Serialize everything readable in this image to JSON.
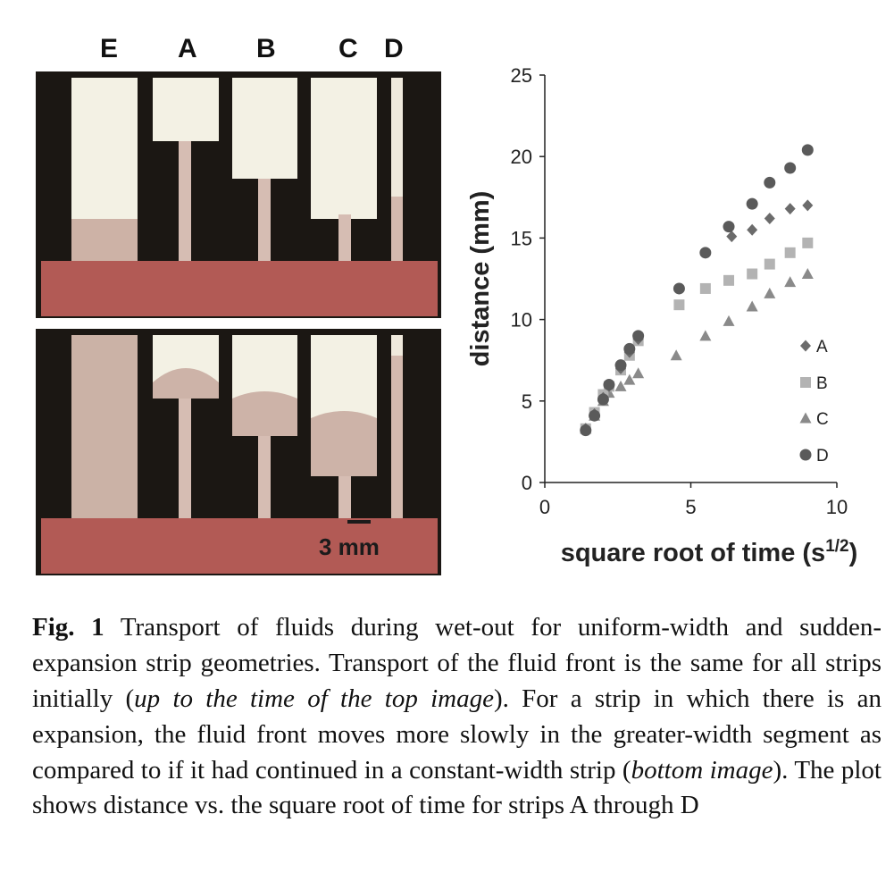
{
  "figure": {
    "strip_labels": [
      "E",
      "A",
      "B",
      "C",
      "D"
    ],
    "scale_bar_label": "3 mm",
    "colors": {
      "background_dark": "#1a1612",
      "strip_white": "#f3f0e4",
      "fluid_pink": "#cdb4aa",
      "reservoir_red": "#b25a55"
    }
  },
  "chart_data": {
    "type": "scatter",
    "xlabel_main": "square root of time (s",
    "xlabel_sup": "1/2",
    "xlabel_end": ")",
    "ylabel": "distance (mm)",
    "xlim": [
      0,
      10
    ],
    "ylim": [
      0,
      25
    ],
    "xticks": [
      0,
      5,
      10
    ],
    "yticks": [
      0,
      5,
      10,
      15,
      20,
      25
    ],
    "legend_position": "right",
    "series": [
      {
        "name": "A",
        "marker": "diamond",
        "color": "#6b6b6b",
        "x": [
          1.4,
          1.7,
          2.0,
          2.2,
          2.6,
          2.9,
          3.2,
          6.4,
          7.1,
          7.7,
          8.4,
          9.0
        ],
        "y": [
          3.3,
          4.2,
          5.2,
          5.9,
          7.0,
          8.0,
          8.8,
          15.1,
          15.5,
          16.2,
          16.8,
          17.0
        ]
      },
      {
        "name": "B",
        "marker": "square",
        "color": "#b3b3b3",
        "x": [
          1.4,
          1.7,
          2.0,
          2.2,
          2.6,
          2.9,
          3.2,
          4.6,
          5.5,
          6.3,
          7.1,
          7.7,
          8.4,
          9.0
        ],
        "y": [
          3.3,
          4.3,
          5.4,
          5.9,
          6.9,
          7.8,
          8.7,
          10.9,
          11.9,
          12.4,
          12.8,
          13.4,
          14.1,
          14.7
        ]
      },
      {
        "name": "C",
        "marker": "triangle",
        "color": "#8a8a8a",
        "x": [
          1.4,
          1.7,
          2.0,
          2.2,
          2.6,
          2.9,
          3.2,
          4.5,
          5.5,
          6.3,
          7.1,
          7.7,
          8.4,
          9.0
        ],
        "y": [
          3.3,
          4.1,
          5.0,
          5.5,
          5.9,
          6.3,
          6.7,
          7.8,
          9.0,
          9.9,
          10.8,
          11.6,
          12.3,
          12.8
        ]
      },
      {
        "name": "D",
        "marker": "circle",
        "color": "#5a5a5a",
        "x": [
          1.4,
          1.7,
          2.0,
          2.2,
          2.6,
          2.9,
          3.2,
          4.6,
          5.5,
          6.3,
          7.1,
          7.7,
          8.4,
          9.0
        ],
        "y": [
          3.2,
          4.1,
          5.1,
          6.0,
          7.2,
          8.2,
          9.0,
          11.9,
          14.1,
          15.7,
          17.1,
          18.4,
          19.3,
          20.4
        ]
      }
    ]
  },
  "caption": {
    "label": "Fig. 1",
    "text_1": " Transport of fluids during wet-out for uniform-width and sudden-expansion strip geometries. Transport of the fluid front is the same for all strips initially (",
    "italic_1": "up to the time of the top image",
    "text_2": "). For a strip in which there is an expansion, the fluid front moves more slowly in the greater-width segment as compared to if it had continued in a constant-width strip (",
    "italic_2": "bottom image",
    "text_3": "). The plot shows distance vs. the square root of time for strips A through D"
  }
}
